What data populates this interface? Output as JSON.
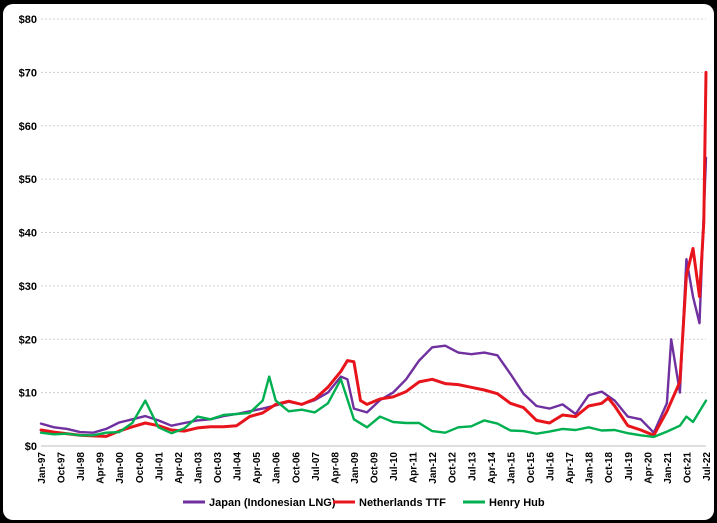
{
  "chart_data": {
    "type": "line",
    "title": "",
    "xlabel": "",
    "ylabel": "",
    "ylim": [
      0,
      80
    ],
    "yticks": [
      "$0",
      "$10",
      "$20",
      "$30",
      "$40",
      "$50",
      "$60",
      "$70",
      "$80"
    ],
    "ytick_values": [
      0,
      10,
      20,
      30,
      40,
      50,
      60,
      70,
      80
    ],
    "xtick_labels": [
      "Jan-97",
      "Oct-97",
      "Jul-98",
      "Apr-99",
      "Jan-00",
      "Oct-00",
      "Jul-01",
      "Apr-02",
      "Jan-03",
      "Oct-03",
      "Jul-04",
      "Apr-05",
      "Jan-06",
      "Oct-06",
      "Jul-07",
      "Apr-08",
      "Jan-09",
      "Oct-09",
      "Jul-10",
      "Apr-11",
      "Jan-12",
      "Oct-12",
      "Jul-13",
      "Apr-14",
      "Jan-15",
      "Oct-15",
      "Jul-16",
      "Apr-17",
      "Jan-18",
      "Oct-18",
      "Jul-19",
      "Apr-20",
      "Jan-21",
      "Oct-21",
      "Jul-22"
    ],
    "grid": true,
    "legend": "bottom",
    "series": [
      {
        "name": "Japan (Indonesian LNG)",
        "color": "#7030a0",
        "points": [
          [
            "Jan-97",
            4.2
          ],
          [
            "Jul-97",
            3.5
          ],
          [
            "Jan-98",
            3.2
          ],
          [
            "Jul-98",
            2.6
          ],
          [
            "Jan-99",
            2.5
          ],
          [
            "Jul-99",
            3.2
          ],
          [
            "Jan-00",
            4.4
          ],
          [
            "Jul-00",
            5.0
          ],
          [
            "Jan-01",
            5.6
          ],
          [
            "Jul-01",
            4.8
          ],
          [
            "Jan-02",
            3.8
          ],
          [
            "Jul-02",
            4.3
          ],
          [
            "Jan-03",
            4.8
          ],
          [
            "Jul-03",
            5.0
          ],
          [
            "Jan-04",
            5.6
          ],
          [
            "Jul-04",
            6.0
          ],
          [
            "Jan-05",
            6.5
          ],
          [
            "Jul-05",
            7.0
          ],
          [
            "Jan-06",
            7.6
          ],
          [
            "Jul-06",
            8.3
          ],
          [
            "Jan-07",
            7.8
          ],
          [
            "Jul-07",
            8.6
          ],
          [
            "Jan-08",
            10.0
          ],
          [
            "Jul-08",
            13.0
          ],
          [
            "Oct-08",
            12.5
          ],
          [
            "Jan-09",
            7.0
          ],
          [
            "Jul-09",
            6.3
          ],
          [
            "Jan-10",
            8.6
          ],
          [
            "Jul-10",
            10.0
          ],
          [
            "Jan-11",
            12.5
          ],
          [
            "Jul-11",
            16.0
          ],
          [
            "Jan-12",
            18.5
          ],
          [
            "Jul-12",
            18.8
          ],
          [
            "Jan-13",
            17.5
          ],
          [
            "Jul-13",
            17.2
          ],
          [
            "Jan-14",
            17.5
          ],
          [
            "Jul-14",
            17.0
          ],
          [
            "Jan-15",
            13.5
          ],
          [
            "Jul-15",
            9.8
          ],
          [
            "Jan-16",
            7.5
          ],
          [
            "Jul-16",
            7.0
          ],
          [
            "Jan-17",
            7.8
          ],
          [
            "Jul-17",
            6.0
          ],
          [
            "Jan-18",
            9.5
          ],
          [
            "Jul-18",
            10.2
          ],
          [
            "Jan-19",
            8.5
          ],
          [
            "Jul-19",
            5.5
          ],
          [
            "Jan-20",
            5.0
          ],
          [
            "Jul-20",
            2.5
          ],
          [
            "Jan-21",
            8.0
          ],
          [
            "Mar-21",
            20.0
          ],
          [
            "Jul-21",
            10.0
          ],
          [
            "Oct-21",
            35.0
          ],
          [
            "Jan-22",
            28.0
          ],
          [
            "Apr-22",
            23.0
          ],
          [
            "Jul-22",
            54.0
          ]
        ]
      },
      {
        "name": "Netherlands TTF",
        "color": "#e8141b",
        "points": [
          [
            "Jan-97",
            3.0
          ],
          [
            "Jul-97",
            2.6
          ],
          [
            "Jan-98",
            2.3
          ],
          [
            "Jul-98",
            2.0
          ],
          [
            "Jan-99",
            1.9
          ],
          [
            "Jul-99",
            1.8
          ],
          [
            "Jan-00",
            2.8
          ],
          [
            "Jul-00",
            3.6
          ],
          [
            "Jan-01",
            4.3
          ],
          [
            "Jul-01",
            3.8
          ],
          [
            "Jan-02",
            3.0
          ],
          [
            "Jul-02",
            2.8
          ],
          [
            "Jan-03",
            3.4
          ],
          [
            "Jul-03",
            3.6
          ],
          [
            "Jan-04",
            3.6
          ],
          [
            "Jul-04",
            3.8
          ],
          [
            "Jan-05",
            5.5
          ],
          [
            "Jul-05",
            6.2
          ],
          [
            "Jan-06",
            7.8
          ],
          [
            "Jul-06",
            8.4
          ],
          [
            "Jan-07",
            7.8
          ],
          [
            "Jul-07",
            8.8
          ],
          [
            "Jan-08",
            11.0
          ],
          [
            "Jul-08",
            14.0
          ],
          [
            "Oct-08",
            16.0
          ],
          [
            "Jan-09",
            15.8
          ],
          [
            "Apr-09",
            8.5
          ],
          [
            "Jul-09",
            7.8
          ],
          [
            "Jan-10",
            8.8
          ],
          [
            "Jul-10",
            9.2
          ],
          [
            "Jan-11",
            10.2
          ],
          [
            "Jul-11",
            12.0
          ],
          [
            "Jan-12",
            12.5
          ],
          [
            "Jul-12",
            11.7
          ],
          [
            "Jan-13",
            11.5
          ],
          [
            "Jul-13",
            11.0
          ],
          [
            "Jan-14",
            10.5
          ],
          [
            "Jul-14",
            9.8
          ],
          [
            "Jan-15",
            8.0
          ],
          [
            "Jul-15",
            7.2
          ],
          [
            "Jan-16",
            4.8
          ],
          [
            "Jul-16",
            4.3
          ],
          [
            "Jan-17",
            5.8
          ],
          [
            "Jul-17",
            5.5
          ],
          [
            "Jan-18",
            7.5
          ],
          [
            "Jul-18",
            8.0
          ],
          [
            "Oct-18",
            9.0
          ],
          [
            "Jan-19",
            7.5
          ],
          [
            "Jul-19",
            3.8
          ],
          [
            "Jan-20",
            3.0
          ],
          [
            "Jul-20",
            2.0
          ],
          [
            "Jan-21",
            6.5
          ],
          [
            "Jul-21",
            12.0
          ],
          [
            "Oct-21",
            32.0
          ],
          [
            "Jan-22",
            37.0
          ],
          [
            "Apr-22",
            28.0
          ],
          [
            "Jun-22",
            42.0
          ],
          [
            "Jul-22",
            70.0
          ]
        ]
      },
      {
        "name": "Henry Hub",
        "color": "#00b050",
        "points": [
          [
            "Jan-97",
            2.5
          ],
          [
            "Jul-97",
            2.2
          ],
          [
            "Jan-98",
            2.3
          ],
          [
            "Jul-98",
            2.0
          ],
          [
            "Jan-99",
            2.0
          ],
          [
            "Jul-99",
            2.5
          ],
          [
            "Jan-00",
            2.6
          ],
          [
            "Jul-00",
            4.3
          ],
          [
            "Jan-01",
            8.5
          ],
          [
            "Jul-01",
            3.5
          ],
          [
            "Jan-02",
            2.4
          ],
          [
            "Jul-02",
            3.3
          ],
          [
            "Jan-03",
            5.5
          ],
          [
            "Jul-03",
            5.0
          ],
          [
            "Jan-04",
            5.8
          ],
          [
            "Jul-04",
            6.0
          ],
          [
            "Jan-05",
            6.2
          ],
          [
            "Jul-05",
            8.5
          ],
          [
            "Oct-05",
            13.0
          ],
          [
            "Jan-06",
            8.5
          ],
          [
            "Jul-06",
            6.5
          ],
          [
            "Jan-07",
            6.8
          ],
          [
            "Jul-07",
            6.3
          ],
          [
            "Jan-08",
            8.0
          ],
          [
            "Jul-08",
            12.5
          ],
          [
            "Jan-09",
            5.0
          ],
          [
            "Jul-09",
            3.5
          ],
          [
            "Jan-10",
            5.5
          ],
          [
            "Jul-10",
            4.5
          ],
          [
            "Jan-11",
            4.3
          ],
          [
            "Jul-11",
            4.3
          ],
          [
            "Jan-12",
            2.8
          ],
          [
            "Jul-12",
            2.5
          ],
          [
            "Jan-13",
            3.5
          ],
          [
            "Jul-13",
            3.7
          ],
          [
            "Jan-14",
            4.8
          ],
          [
            "Jul-14",
            4.2
          ],
          [
            "Jan-15",
            2.9
          ],
          [
            "Jul-15",
            2.8
          ],
          [
            "Jan-16",
            2.3
          ],
          [
            "Jul-16",
            2.7
          ],
          [
            "Jan-17",
            3.2
          ],
          [
            "Jul-17",
            3.0
          ],
          [
            "Jan-18",
            3.5
          ],
          [
            "Jul-18",
            2.9
          ],
          [
            "Jan-19",
            3.0
          ],
          [
            "Jul-19",
            2.4
          ],
          [
            "Jan-20",
            2.0
          ],
          [
            "Jul-20",
            1.7
          ],
          [
            "Jan-21",
            2.7
          ],
          [
            "Jul-21",
            3.8
          ],
          [
            "Oct-21",
            5.5
          ],
          [
            "Jan-22",
            4.5
          ],
          [
            "Apr-22",
            6.5
          ],
          [
            "Jul-22",
            8.5
          ]
        ]
      }
    ]
  }
}
